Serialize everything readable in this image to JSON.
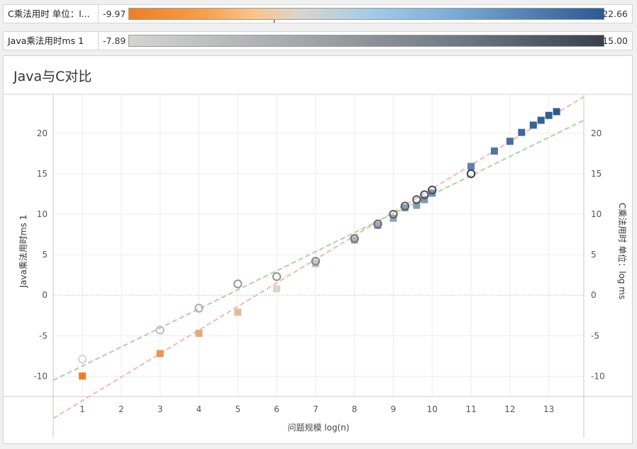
{
  "legends": [
    {
      "name": "C乘法用时 单位：l...",
      "min": "-9.97",
      "max": "22.66"
    },
    {
      "name": "Java乘法用时ms 1",
      "min": "-7.89",
      "max": "15.00"
    }
  ],
  "colors": {
    "c_low": "#f07d24",
    "c_mid": "#d9d6cc",
    "c_high": "#2b5b94",
    "java_low": "#d4d5d3",
    "java_high": "#38404c",
    "trend_java": "#a8d89a",
    "trend_c": "#f7b5b5"
  },
  "chart_data": {
    "type": "scatter",
    "title": "Java与C对比",
    "xlabel": "问题规模 log(n)",
    "ylabel_left": "Java乘法用时ms 1",
    "ylabel_right": "C乘法用时 单位：log ms",
    "xlim": [
      0.25,
      13.9
    ],
    "ylim": [
      -12.5,
      24.8
    ],
    "x_ticks": [
      "1",
      "2",
      "3",
      "4",
      "5",
      "6",
      "7",
      "8",
      "9",
      "10",
      "11",
      "12",
      "13"
    ],
    "y_ticks": [
      "-10",
      "-5",
      "0",
      "5",
      "10",
      "15",
      "20"
    ],
    "grid": true,
    "series": [
      {
        "name": "Java乘法用时ms 1",
        "marker": "circle-open",
        "points": [
          [
            1,
            -7.89
          ],
          [
            3,
            -4.3
          ],
          [
            4,
            -1.6
          ],
          [
            5,
            1.4
          ],
          [
            6,
            2.3
          ],
          [
            7,
            4.2
          ],
          [
            8,
            7.0
          ],
          [
            8.6,
            8.8
          ],
          [
            9,
            10.0
          ],
          [
            9.3,
            11.0
          ],
          [
            9.6,
            11.8
          ],
          [
            9.8,
            12.4
          ],
          [
            10,
            13.0
          ],
          [
            11,
            15.0
          ]
        ]
      },
      {
        "name": "C乘法用时 单位：log ms",
        "marker": "square-filled",
        "points": [
          [
            1,
            -9.97
          ],
          [
            3,
            -7.2
          ],
          [
            4,
            -4.7
          ],
          [
            5,
            -2.1
          ],
          [
            6,
            0.8
          ],
          [
            7,
            3.9
          ],
          [
            8,
            6.8
          ],
          [
            8.6,
            8.6
          ],
          [
            9,
            9.5
          ],
          [
            9.3,
            10.8
          ],
          [
            9.6,
            11.1
          ],
          [
            9.8,
            11.8
          ],
          [
            10,
            12.6
          ],
          [
            11,
            15.9
          ],
          [
            11.6,
            17.8
          ],
          [
            12,
            19.0
          ],
          [
            12.3,
            20.1
          ],
          [
            12.6,
            21.0
          ],
          [
            12.8,
            21.6
          ],
          [
            13,
            22.2
          ],
          [
            13.2,
            22.66
          ]
        ]
      }
    ],
    "trendlines": [
      {
        "series": "Java乘法用时ms 1",
        "style": "dashed",
        "from": [
          0.25,
          -10.5
        ],
        "to": [
          13.9,
          21.6
        ]
      },
      {
        "series": "C乘法用时 单位：log ms",
        "style": "dashed",
        "from": [
          0.25,
          -15.2
        ],
        "to": [
          13.9,
          24.5
        ]
      }
    ]
  }
}
